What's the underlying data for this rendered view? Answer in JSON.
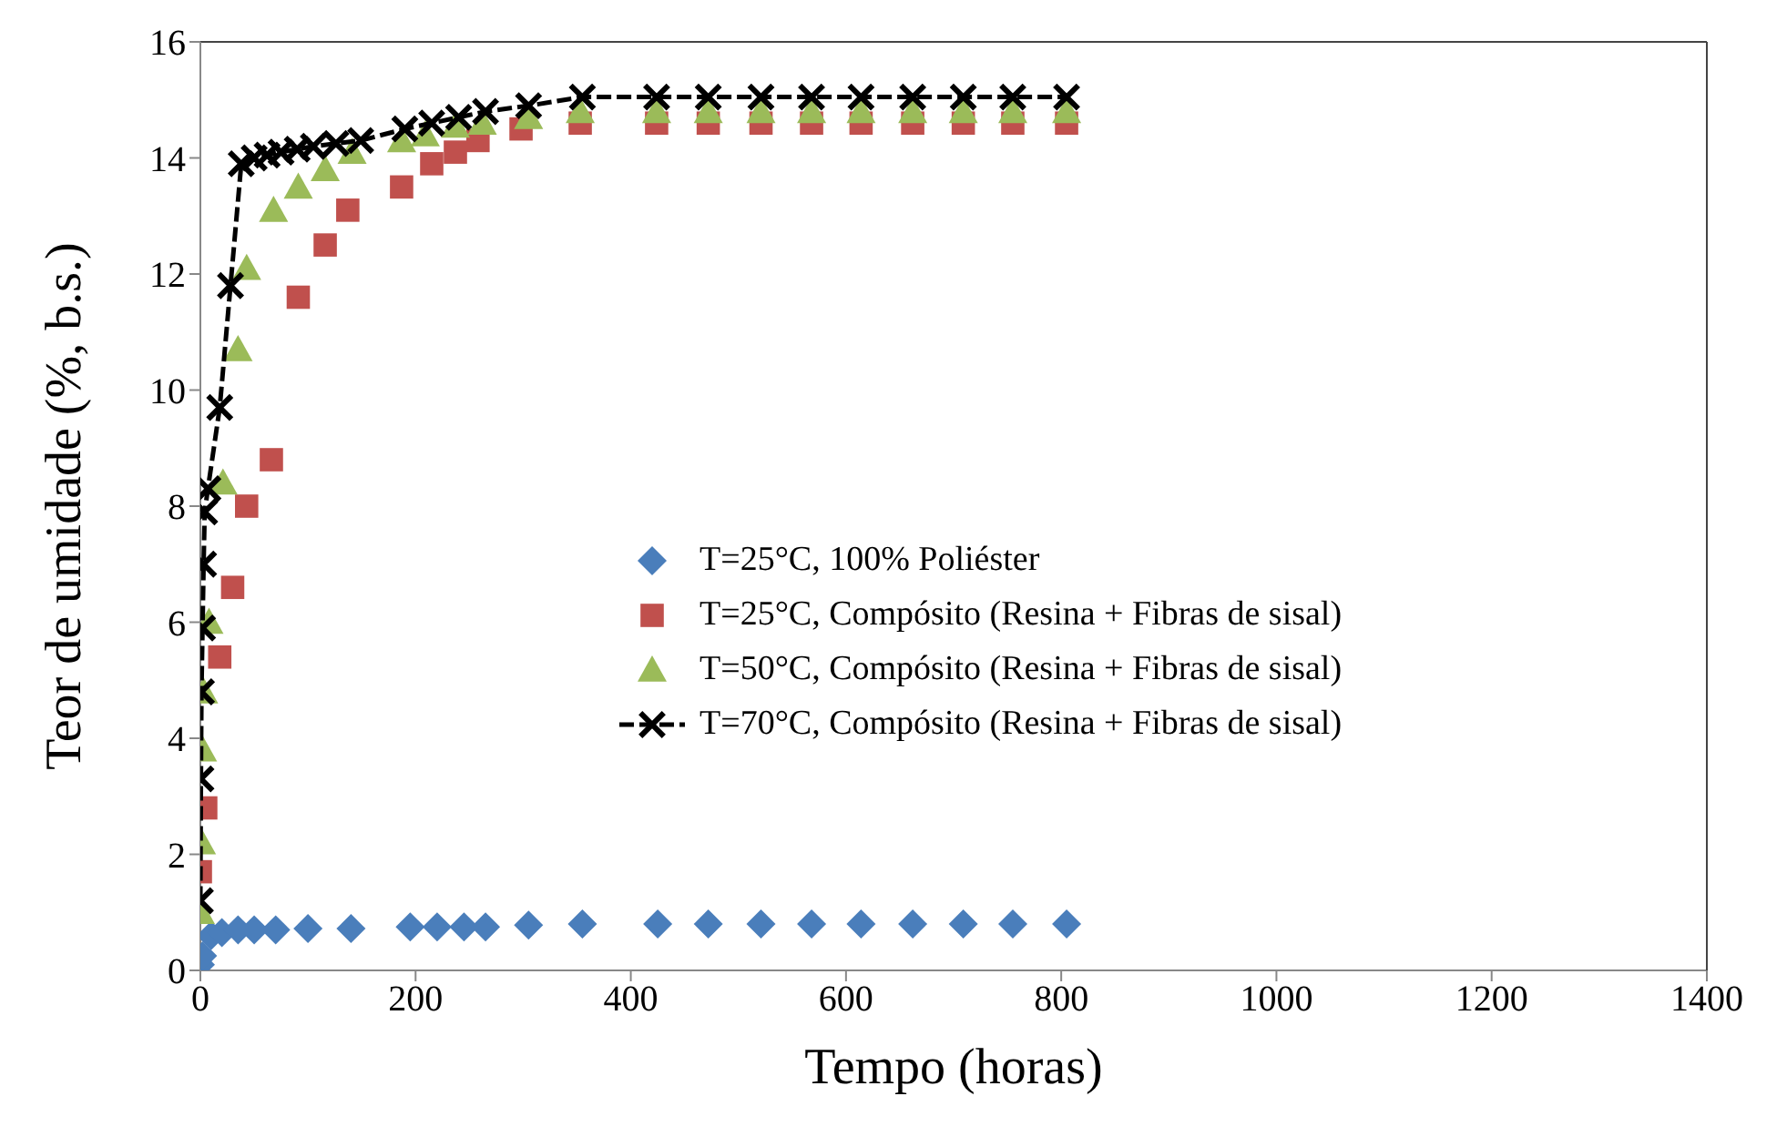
{
  "chart_data": {
    "type": "scatter",
    "xlabel": "Tempo (horas)",
    "ylabel": "Teor de umidade (%, b.s.)",
    "xlim": [
      0,
      1400
    ],
    "xticks": [
      0,
      200,
      400,
      600,
      800,
      1000,
      1200,
      1400
    ],
    "ylim": [
      0,
      16
    ],
    "yticks": [
      0,
      2,
      4,
      6,
      8,
      10,
      12,
      14,
      16
    ],
    "grid": false,
    "legend": "center",
    "series": [
      {
        "name": "T=25°C, 100% Poliéster",
        "marker": "diamond",
        "color": "#4a7ebb",
        "x": [
          0,
          2,
          10,
          20,
          35,
          50,
          70,
          100,
          140,
          195,
          220,
          245,
          265,
          305,
          355,
          425,
          472,
          521,
          568,
          614,
          662,
          709,
          755,
          805
        ],
        "values": [
          0.1,
          0.25,
          0.6,
          0.65,
          0.7,
          0.7,
          0.7,
          0.72,
          0.72,
          0.75,
          0.75,
          0.75,
          0.75,
          0.78,
          0.8,
          0.8,
          0.8,
          0.8,
          0.8,
          0.8,
          0.8,
          0.8,
          0.8,
          0.8
        ]
      },
      {
        "name": "T=25°C, Compósito (Resina + Fibras de sisal)",
        "marker": "square",
        "color": "#c0504d",
        "x": [
          0,
          5,
          18,
          30,
          43,
          66,
          91,
          116,
          137,
          187,
          215,
          237,
          258,
          298,
          353,
          424,
          472,
          521,
          568,
          614,
          662,
          709,
          755,
          805
        ],
        "values": [
          1.7,
          2.8,
          5.4,
          6.6,
          8.0,
          8.8,
          11.6,
          12.5,
          13.1,
          13.5,
          13.9,
          14.1,
          14.3,
          14.5,
          14.6,
          14.6,
          14.6,
          14.6,
          14.6,
          14.6,
          14.6,
          14.6,
          14.6,
          14.6
        ]
      },
      {
        "name": "T=50°C, Compósito (Resina + Fibras de sisal)",
        "marker": "triangle",
        "color": "#9bbb59",
        "x": [
          0,
          1,
          2,
          3,
          8,
          21,
          35,
          43,
          68,
          91,
          116,
          141,
          187,
          209,
          237,
          262,
          305,
          353,
          424,
          472,
          521,
          568,
          614,
          662,
          709,
          755,
          805
        ],
        "values": [
          1.0,
          2.2,
          3.8,
          4.8,
          6.0,
          8.4,
          10.7,
          12.1,
          13.1,
          13.5,
          13.8,
          14.1,
          14.3,
          14.4,
          14.55,
          14.6,
          14.7,
          14.8,
          14.8,
          14.8,
          14.8,
          14.8,
          14.8,
          14.8,
          14.8,
          14.8,
          14.8
        ]
      },
      {
        "name": "T=70°C, Compósito (Resina + Fibras de sisal)",
        "type": "line",
        "marker": "cross",
        "line_style": "dashed",
        "color": "#000000",
        "x": [
          0,
          0.5,
          1,
          2,
          3,
          4,
          7,
          18,
          28,
          38,
          50,
          62,
          75,
          90,
          105,
          126,
          149,
          190,
          215,
          240,
          265,
          305,
          355,
          424,
          472,
          521,
          568,
          614,
          662,
          709,
          755,
          805
        ],
        "values": [
          1.2,
          3.3,
          4.8,
          5.9,
          7.0,
          7.9,
          8.3,
          9.7,
          11.8,
          13.9,
          14.0,
          14.05,
          14.1,
          14.15,
          14.2,
          14.25,
          14.3,
          14.5,
          14.6,
          14.7,
          14.8,
          14.9,
          15.05,
          15.05,
          15.05,
          15.05,
          15.05,
          15.05,
          15.05,
          15.05,
          15.05,
          15.05
        ]
      }
    ]
  }
}
